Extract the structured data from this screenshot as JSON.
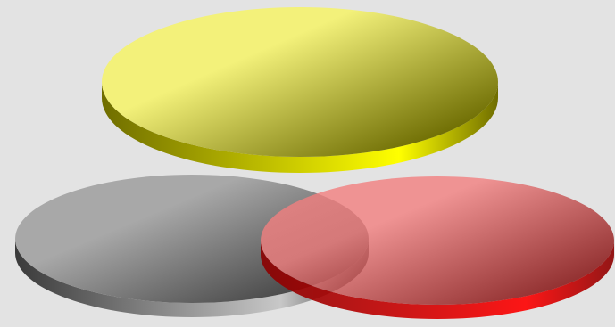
{
  "diagram": {
    "type": "venn-3d-discs",
    "background_color": "#e3e3e3",
    "discs": [
      {
        "id": "yellow",
        "name": "yellow-disc",
        "top_light": "#f3f17a",
        "top_dark": "#6b6a00",
        "side_light": "#ffff00",
        "side_dark": "#6f6d00"
      },
      {
        "id": "gray",
        "name": "gray-disc",
        "top_light": "#a8a8a8",
        "top_dark": "#444444",
        "side_light": "#c8c8c8",
        "side_dark": "#3a3a3a"
      },
      {
        "id": "red",
        "name": "red-disc",
        "top_light": "#f27f7f",
        "top_dark": "#7a0000",
        "side_light": "#ff0000",
        "side_dark": "#8a0000"
      }
    ]
  }
}
